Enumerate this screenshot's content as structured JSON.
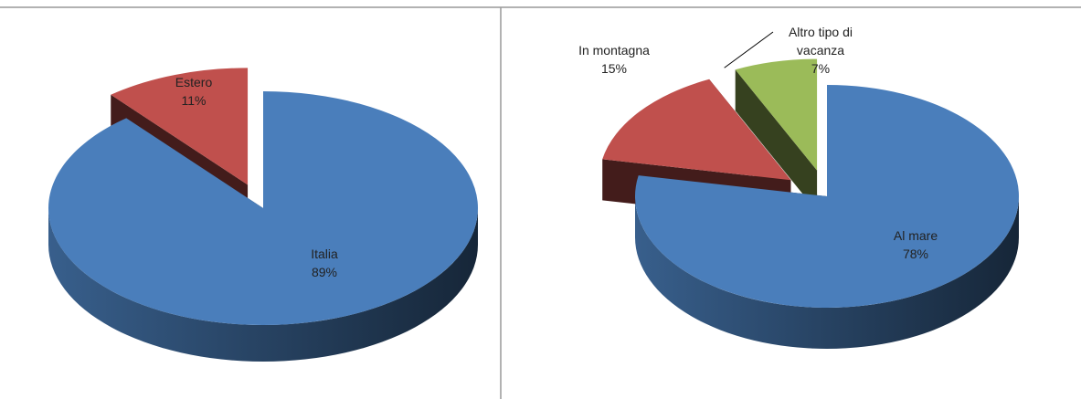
{
  "chart_data": [
    {
      "type": "pie",
      "categories": [
        "Italia",
        "Estero"
      ],
      "values": [
        89,
        11
      ],
      "value_labels": [
        "89%",
        "11%"
      ],
      "colors": [
        "#4a7ebb",
        "#c0504d"
      ],
      "explode": [
        false,
        true
      ]
    },
    {
      "type": "pie",
      "categories": [
        "Al mare",
        "In montagna",
        "Altro tipo di vacanza"
      ],
      "values": [
        78,
        15,
        7
      ],
      "value_labels": [
        "78%",
        "15%",
        "7%"
      ],
      "colors": [
        "#4a7ebb",
        "#c0504d",
        "#9bbb59"
      ],
      "explode": [
        false,
        true,
        true
      ]
    }
  ]
}
